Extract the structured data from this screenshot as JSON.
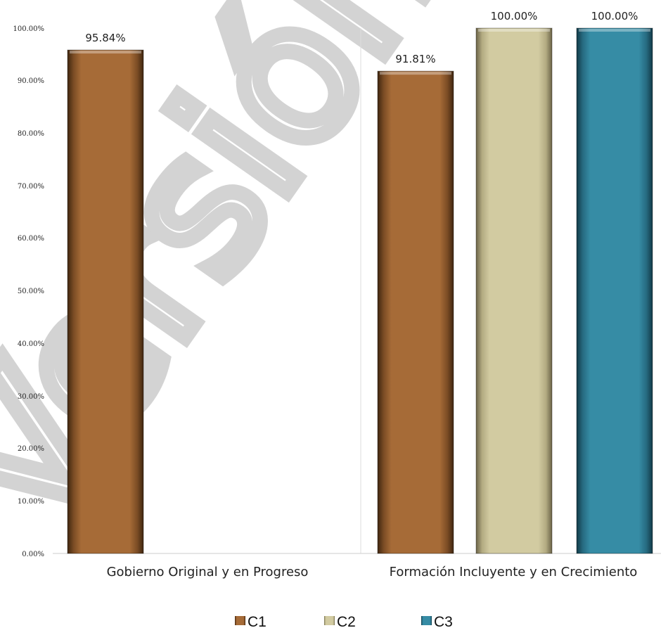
{
  "chart_data": {
    "type": "bar",
    "categories": [
      "Gobierno Original y en Progreso",
      "Formación Incluyente y en Crecimiento"
    ],
    "series": [
      {
        "name": "C1",
        "color": "#A66B37",
        "values": [
          95.84,
          91.81
        ]
      },
      {
        "name": "C2",
        "color": "#D2CBA1",
        "values": [
          null,
          100.0
        ]
      },
      {
        "name": "C3",
        "color": "#368CA5",
        "values": [
          null,
          100.0
        ]
      }
    ],
    "data_labels": [
      [
        "95.84%",
        null,
        null
      ],
      [
        "91.81%",
        "100.00%",
        "100.00%"
      ]
    ],
    "y_ticks": [
      "0.00%",
      "10.00%",
      "20.00%",
      "30.00%",
      "40.00%",
      "50.00%",
      "60.00%",
      "70.00%",
      "80.00%",
      "90.00%",
      "100.00%"
    ],
    "ylim": [
      0,
      100
    ],
    "grid": false,
    "legend": "bottom",
    "watermark": "Versión Pú"
  }
}
